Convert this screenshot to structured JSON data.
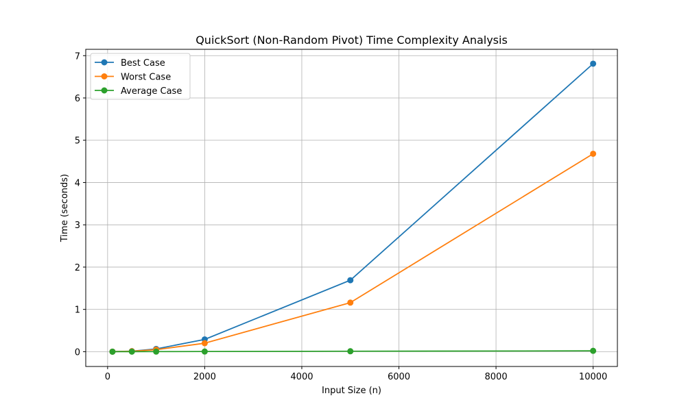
{
  "chart_data": {
    "type": "line",
    "title": "QuickSort (Non-Random Pivot) Time Complexity Analysis",
    "xlabel": "Input Size (n)",
    "ylabel": "Time (seconds)",
    "x": [
      100,
      500,
      1000,
      2000,
      5000,
      10000
    ],
    "xlim": [
      -450,
      10500
    ],
    "ylim": [
      -0.35,
      7.15
    ],
    "x_ticks": [
      0,
      2000,
      4000,
      6000,
      8000,
      10000
    ],
    "x_tick_labels": [
      "0",
      "2000",
      "4000",
      "6000",
      "8000",
      "10000"
    ],
    "y_ticks": [
      0,
      1,
      2,
      3,
      4,
      5,
      6,
      7
    ],
    "y_tick_labels": [
      "0",
      "1",
      "2",
      "3",
      "4",
      "5",
      "6",
      "7"
    ],
    "grid": true,
    "legend_position": "top-left",
    "series": [
      {
        "name": "Best Case",
        "color": "#1f77b4",
        "values": [
          0.001,
          0.012,
          0.065,
          0.29,
          1.69,
          6.81
        ]
      },
      {
        "name": "Worst Case",
        "color": "#ff7f0e",
        "values": [
          0.001,
          0.01,
          0.048,
          0.2,
          1.16,
          4.68
        ]
      },
      {
        "name": "Average Case",
        "color": "#2ca02c",
        "values": [
          0.0,
          0.001,
          0.002,
          0.004,
          0.01,
          0.02
        ]
      }
    ]
  }
}
